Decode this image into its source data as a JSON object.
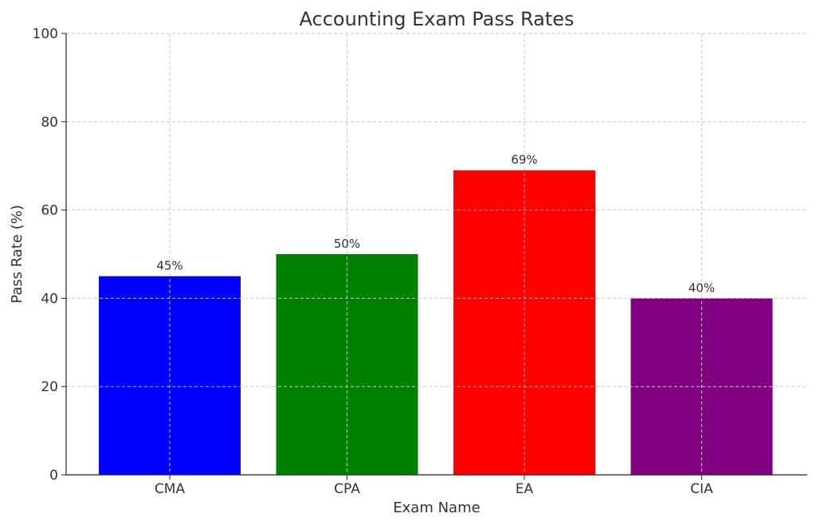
{
  "chart_data": {
    "type": "bar",
    "title": "Accounting Exam Pass Rates",
    "xlabel": "Exam Name",
    "ylabel": "Pass Rate (%)",
    "categories": [
      "CMA",
      "CPA",
      "EA",
      "CIA"
    ],
    "values": [
      45,
      50,
      69,
      40
    ],
    "data_labels": [
      "45%",
      "50%",
      "69%",
      "40%"
    ],
    "colors": [
      "#0000ff",
      "#008000",
      "#ff0000",
      "#800080"
    ],
    "ylim": [
      0,
      100
    ],
    "yticks": [
      0,
      20,
      40,
      60,
      80,
      100
    ],
    "grid": true,
    "legend": "none"
  }
}
